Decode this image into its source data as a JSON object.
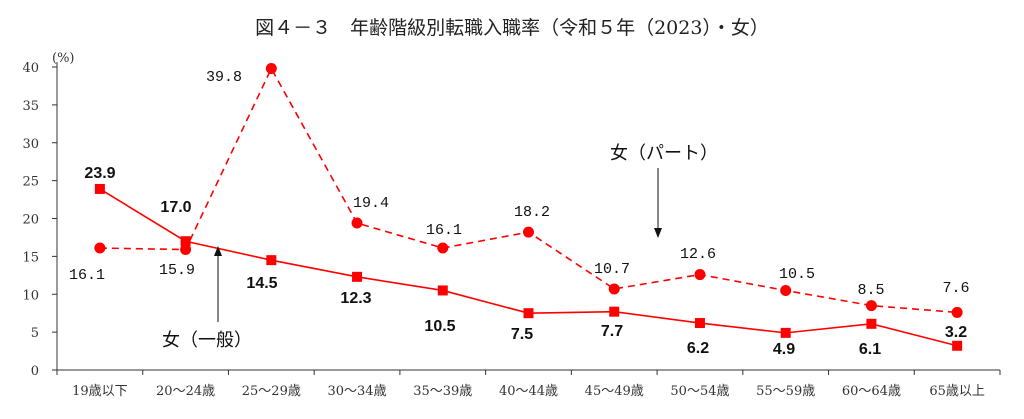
{
  "chart_data": {
    "type": "line",
    "title": "図４－３　年齢階級別転職入職率（令和５年（2023）・女）",
    "ylabel": "(%)",
    "xlabel": "",
    "ylim": [
      0,
      40
    ],
    "yticks": [
      0,
      5,
      10,
      15,
      20,
      25,
      30,
      35,
      40
    ],
    "categories": [
      "19歳以下",
      "20～24歳",
      "25～29歳",
      "30～34歳",
      "35～39歳",
      "40～44歳",
      "45～49歳",
      "50～54歳",
      "55～59歳",
      "60～64歳",
      "65歳以上"
    ],
    "series": [
      {
        "name": "女（一般）",
        "style": "solid",
        "marker": "square",
        "color": "#ff0000",
        "values": [
          23.9,
          17.0,
          14.5,
          12.3,
          10.5,
          7.5,
          7.7,
          6.2,
          4.9,
          6.1,
          3.2
        ],
        "labels": [
          "23.9",
          "17.0",
          "14.5",
          "12.3",
          "10.5",
          "7.5",
          "7.7",
          "6.2",
          "4.9",
          "6.1",
          "3.2"
        ]
      },
      {
        "name": "女（パート）",
        "style": "dashed",
        "marker": "circle",
        "color": "#ff0000",
        "values": [
          16.1,
          15.9,
          39.8,
          19.4,
          16.1,
          18.2,
          10.7,
          12.6,
          10.5,
          8.5,
          7.6
        ],
        "labels": [
          "16.1",
          "15.9",
          "39.8",
          "19.4",
          "16.1",
          "18.2",
          "10.7",
          "12.6",
          "10.5",
          "8.5",
          "7.6"
        ]
      }
    ],
    "annotations": [
      "女（パート）",
      "女（一般）"
    ],
    "grid": false
  }
}
